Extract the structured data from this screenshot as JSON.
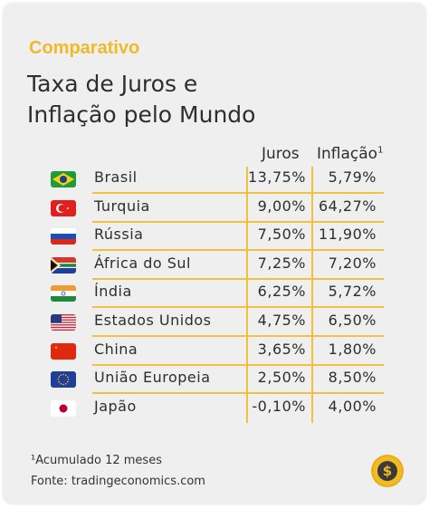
{
  "header": {
    "kicker": "Comparativo",
    "title_line1": "Taxa de Juros e",
    "title_line2": "Inflação pelo Mundo"
  },
  "columns": {
    "juros": "Juros",
    "inflacao": "Inflação",
    "inflacao_note": "1"
  },
  "rows": [
    {
      "country": "Brasil",
      "juros": "13,75%",
      "inflacao": "5,79%",
      "flag_icon": "brazil-flag-icon"
    },
    {
      "country": "Turquia",
      "juros": "9,00%",
      "inflacao": "64,27%",
      "flag_icon": "turkey-flag-icon"
    },
    {
      "country": "Rússia",
      "juros": "7,50%",
      "inflacao": "11,90%",
      "flag_icon": "russia-flag-icon"
    },
    {
      "country": "África do Sul",
      "juros": "7,25%",
      "inflacao": "7,20%",
      "flag_icon": "south-africa-flag-icon"
    },
    {
      "country": "Índia",
      "juros": "6,25%",
      "inflacao": "5,72%",
      "flag_icon": "india-flag-icon"
    },
    {
      "country": "Estados Unidos",
      "juros": "4,75%",
      "inflacao": "6,50%",
      "flag_icon": "usa-flag-icon"
    },
    {
      "country": "China",
      "juros": "3,65%",
      "inflacao": "1,80%",
      "flag_icon": "china-flag-icon"
    },
    {
      "country": "União Europeia",
      "juros": "2,50%",
      "inflacao": "8,50%",
      "flag_icon": "eu-flag-icon"
    },
    {
      "country": "Japão",
      "juros": "-0,10%",
      "inflacao": "4,00%",
      "flag_icon": "japan-flag-icon"
    }
  ],
  "footer": {
    "note": "¹Acumulado 12 meses",
    "source": "Fonte: tradingeconomics.com",
    "logo_icon": "dollar-coin-icon"
  },
  "colors": {
    "accent": "#f0b92a",
    "text": "#2e2e2e",
    "background": "#efefef"
  },
  "chart_data": {
    "type": "table",
    "title": "Taxa de Juros e Inflação pelo Mundo",
    "columns": [
      "",
      "Juros",
      "Inflação¹"
    ],
    "categories": [
      "Brasil",
      "Turquia",
      "Rússia",
      "África do Sul",
      "Índia",
      "Estados Unidos",
      "China",
      "União Europeia",
      "Japão"
    ],
    "series": [
      {
        "name": "Juros",
        "values": [
          13.75,
          9.0,
          7.5,
          7.25,
          6.25,
          4.75,
          3.65,
          2.5,
          -0.1
        ]
      },
      {
        "name": "Inflação",
        "values": [
          5.79,
          64.27,
          11.9,
          7.2,
          5.72,
          6.5,
          1.8,
          8.5,
          4.0
        ]
      }
    ]
  }
}
